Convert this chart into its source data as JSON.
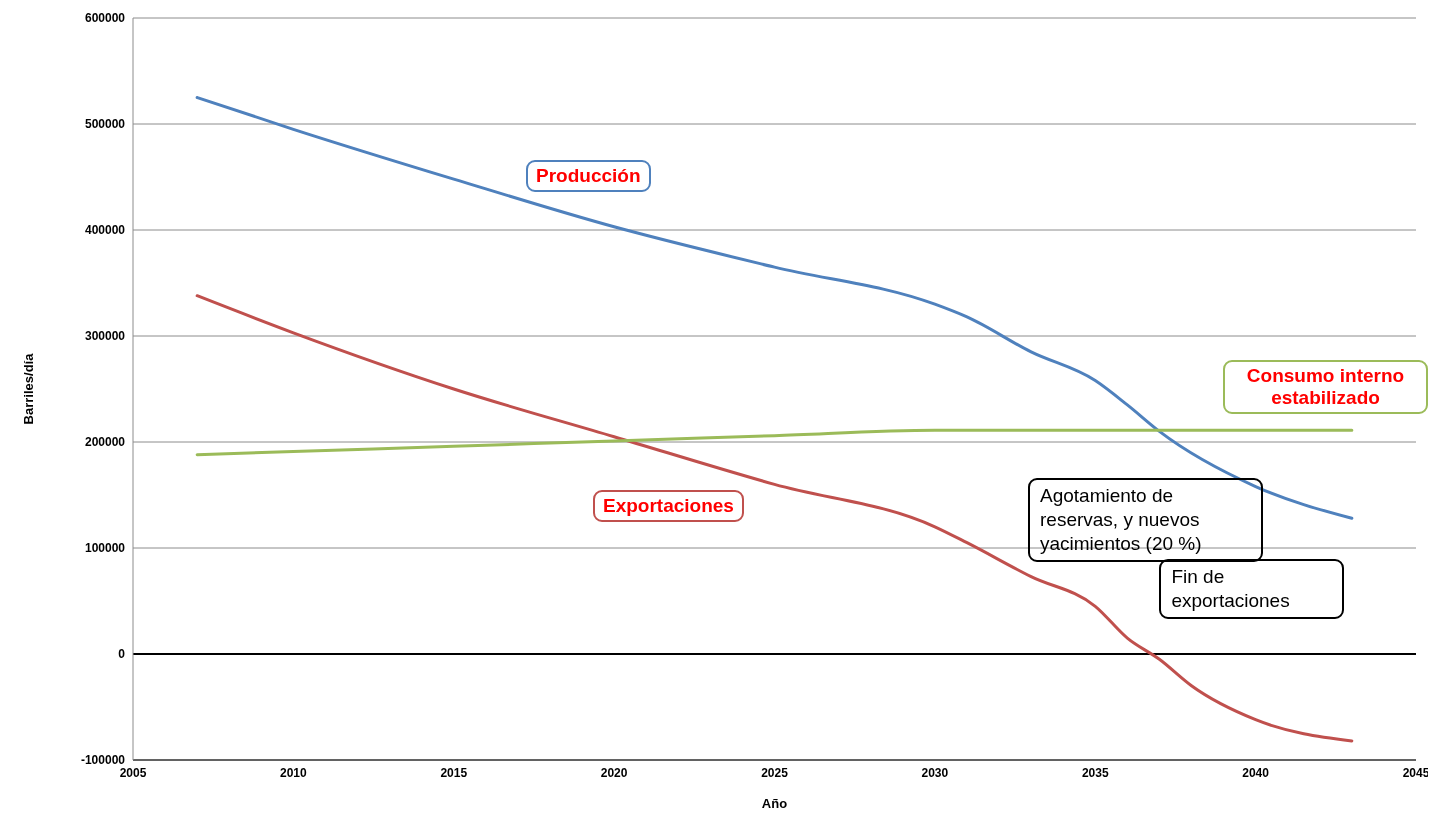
{
  "chart_data": {
    "type": "line",
    "xlabel": "Año",
    "ylabel": "Barriles/día",
    "xlim": [
      2005,
      2045
    ],
    "xticks": [
      2005,
      2010,
      2015,
      2020,
      2025,
      2030,
      2035,
      2040,
      2045
    ],
    "ylim": [
      -100000,
      600000
    ],
    "yticks": [
      -100000,
      0,
      100000,
      200000,
      300000,
      400000,
      500000,
      600000
    ],
    "grid": "y",
    "marker": "none",
    "line_style": "solid",
    "legend": false,
    "ref_lines": [
      {
        "axis": "y",
        "value": 0,
        "color": "#000000"
      }
    ],
    "series": [
      {
        "name": "Producción",
        "color": "#4f81bd",
        "x": [
          2007,
          2010,
          2015,
          2020,
          2025,
          2030,
          2031,
          2033,
          2035,
          2036,
          2037,
          2040,
          2043
        ],
        "values": [
          525000,
          495000,
          448000,
          403000,
          365000,
          330000,
          318000,
          285000,
          258000,
          235000,
          210000,
          158000,
          128000
        ]
      },
      {
        "name": "Exportaciones",
        "color": "#c0504d",
        "x": [
          2007,
          2010,
          2015,
          2020,
          2025,
          2030,
          2031,
          2033,
          2035,
          2036,
          2037,
          2038,
          2040,
          2043
        ],
        "values": [
          338000,
          303000,
          250000,
          205000,
          160000,
          120000,
          105000,
          73000,
          45000,
          15000,
          -5000,
          -30000,
          -62000,
          -82000
        ]
      },
      {
        "name": "Consumo interno estabilizado",
        "color": "#9bbb59",
        "x": [
          2007,
          2010,
          2015,
          2020,
          2025,
          2030,
          2035,
          2040,
          2043
        ],
        "values": [
          188000,
          191000,
          196000,
          201000,
          206000,
          211000,
          211000,
          211000,
          211000
        ]
      }
    ],
    "annotations": [
      "Agotamiento de reservas, y nuevos yacimientos (20 %)",
      {
        "text": "Fin de exportaciones",
        "x": 2037,
        "y": 0
      }
    ]
  }
}
